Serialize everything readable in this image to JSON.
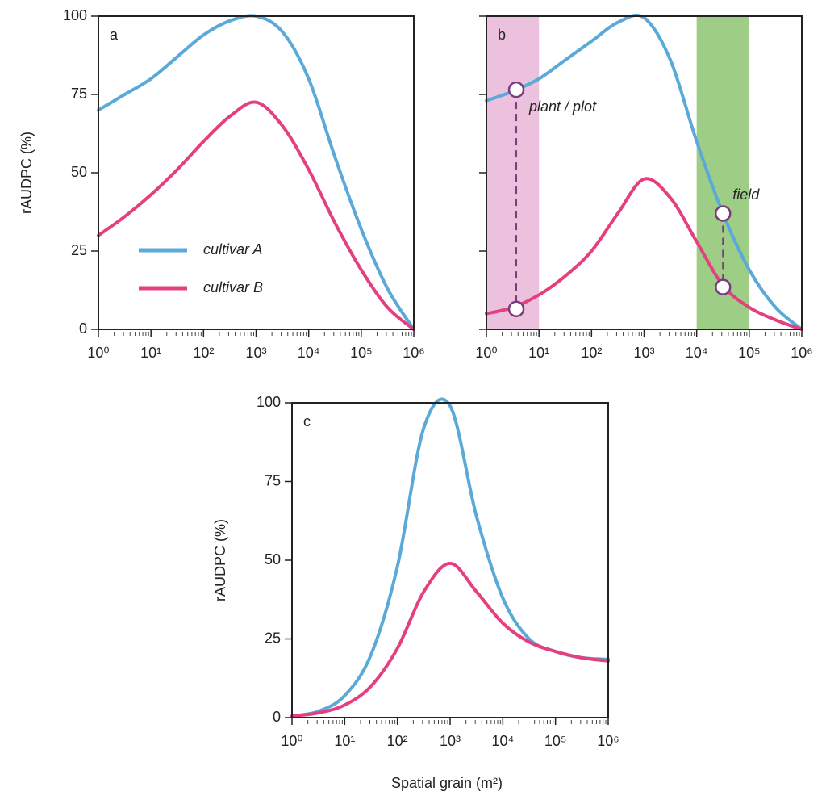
{
  "chart_data": [
    {
      "type": "line",
      "panel_label": "a",
      "ylabel": "rAUDPC (%)",
      "x": [
        1,
        3.162,
        10,
        31.62,
        100,
        316.2,
        1000,
        3162,
        10000,
        31620,
        100000,
        316200,
        1000000
      ],
      "series": [
        {
          "name": "cultivar A",
          "color": "#5aa9d9",
          "values": [
            70,
            75,
            80,
            87,
            94,
            98.5,
            100,
            95,
            80,
            55,
            32,
            13,
            0
          ]
        },
        {
          "name": "cultivar B",
          "color": "#e4407f",
          "values": [
            30,
            36,
            43,
            51,
            60,
            68,
            72.5,
            65,
            51,
            34,
            19,
            7,
            0
          ]
        }
      ],
      "xscale": "log",
      "xlim": [
        1,
        1000000
      ],
      "xticks": [
        {
          "value": 1,
          "label": "10⁰"
        },
        {
          "value": 10,
          "label": "10¹"
        },
        {
          "value": 100,
          "label": "10²"
        },
        {
          "value": 1000,
          "label": "10³"
        },
        {
          "value": 10000,
          "label": "10⁴"
        },
        {
          "value": 100000,
          "label": "10⁵"
        },
        {
          "value": 1000000,
          "label": "10⁶"
        }
      ],
      "ylim": [
        0,
        100
      ],
      "yticks": [
        0,
        25,
        50,
        75,
        100
      ],
      "ytick_labels": true,
      "legend": "lower left"
    },
    {
      "type": "line",
      "panel_label": "b",
      "x": [
        1,
        3.162,
        10,
        31.62,
        100,
        316.2,
        1000,
        3162,
        10000,
        31620,
        100000,
        316200,
        1000000
      ],
      "series": [
        {
          "color": "#5aa9d9",
          "values": [
            73,
            76,
            80,
            86,
            92,
            98,
            99.5,
            86,
            60,
            37,
            19,
            7,
            0
          ]
        },
        {
          "color": "#e4407f",
          "values": [
            5,
            7,
            11,
            17,
            25,
            37,
            48,
            42,
            28,
            14,
            7,
            3,
            0
          ]
        }
      ],
      "bands": [
        {
          "range": [
            1,
            10
          ],
          "color": "#ecc1dd"
        },
        {
          "range": [
            10000,
            100000
          ],
          "color": "#9ecd86"
        }
      ],
      "links": [
        {
          "label": "plant / plot",
          "x": 3.7,
          "y": [
            76.5,
            6.5
          ]
        },
        {
          "label": "field",
          "x": 31620,
          "y": [
            37,
            13.5
          ]
        }
      ],
      "link_color": "#7b3b7d",
      "xscale": "log",
      "xlim": [
        1,
        1000000
      ],
      "xticks": [
        {
          "value": 1,
          "label": "10⁰"
        },
        {
          "value": 10,
          "label": "10¹"
        },
        {
          "value": 100,
          "label": "10²"
        },
        {
          "value": 1000,
          "label": "10³"
        },
        {
          "value": 10000,
          "label": "10⁴"
        },
        {
          "value": 100000,
          "label": "10⁵"
        },
        {
          "value": 1000000,
          "label": "10⁶"
        }
      ],
      "ylim": [
        0,
        100
      ],
      "yticks": [
        0,
        25,
        50,
        75,
        100
      ],
      "ytick_labels": false
    },
    {
      "type": "line",
      "panel_label": "c",
      "ylabel": "rAUDPC (%)",
      "xlabel": "Spatial grain (m²)",
      "x": [
        1,
        3.162,
        10,
        31.62,
        100,
        316.2,
        1000,
        3162,
        10000,
        31620,
        100000,
        316200,
        1000000
      ],
      "series": [
        {
          "color": "#5aa9d9",
          "values": [
            0.5,
            2,
            7,
            20,
            48,
            92,
            99,
            64,
            38,
            25,
            21,
            19,
            18.5
          ]
        },
        {
          "color": "#e4407f",
          "values": [
            0.5,
            1.5,
            4,
            10,
            22,
            40,
            49,
            40,
            30,
            24,
            21,
            19,
            18
          ]
        }
      ],
      "xscale": "log",
      "xlim": [
        1,
        1000000
      ],
      "xticks": [
        {
          "value": 1,
          "label": "10⁰"
        },
        {
          "value": 10,
          "label": "10¹"
        },
        {
          "value": 100,
          "label": "10²"
        },
        {
          "value": 1000,
          "label": "10³"
        },
        {
          "value": 10000,
          "label": "10⁴"
        },
        {
          "value": 100000,
          "label": "10⁵"
        },
        {
          "value": 1000000,
          "label": "10⁶"
        }
      ],
      "ylim": [
        0,
        100
      ],
      "yticks": [
        0,
        25,
        50,
        75,
        100
      ],
      "ytick_labels": true
    }
  ]
}
